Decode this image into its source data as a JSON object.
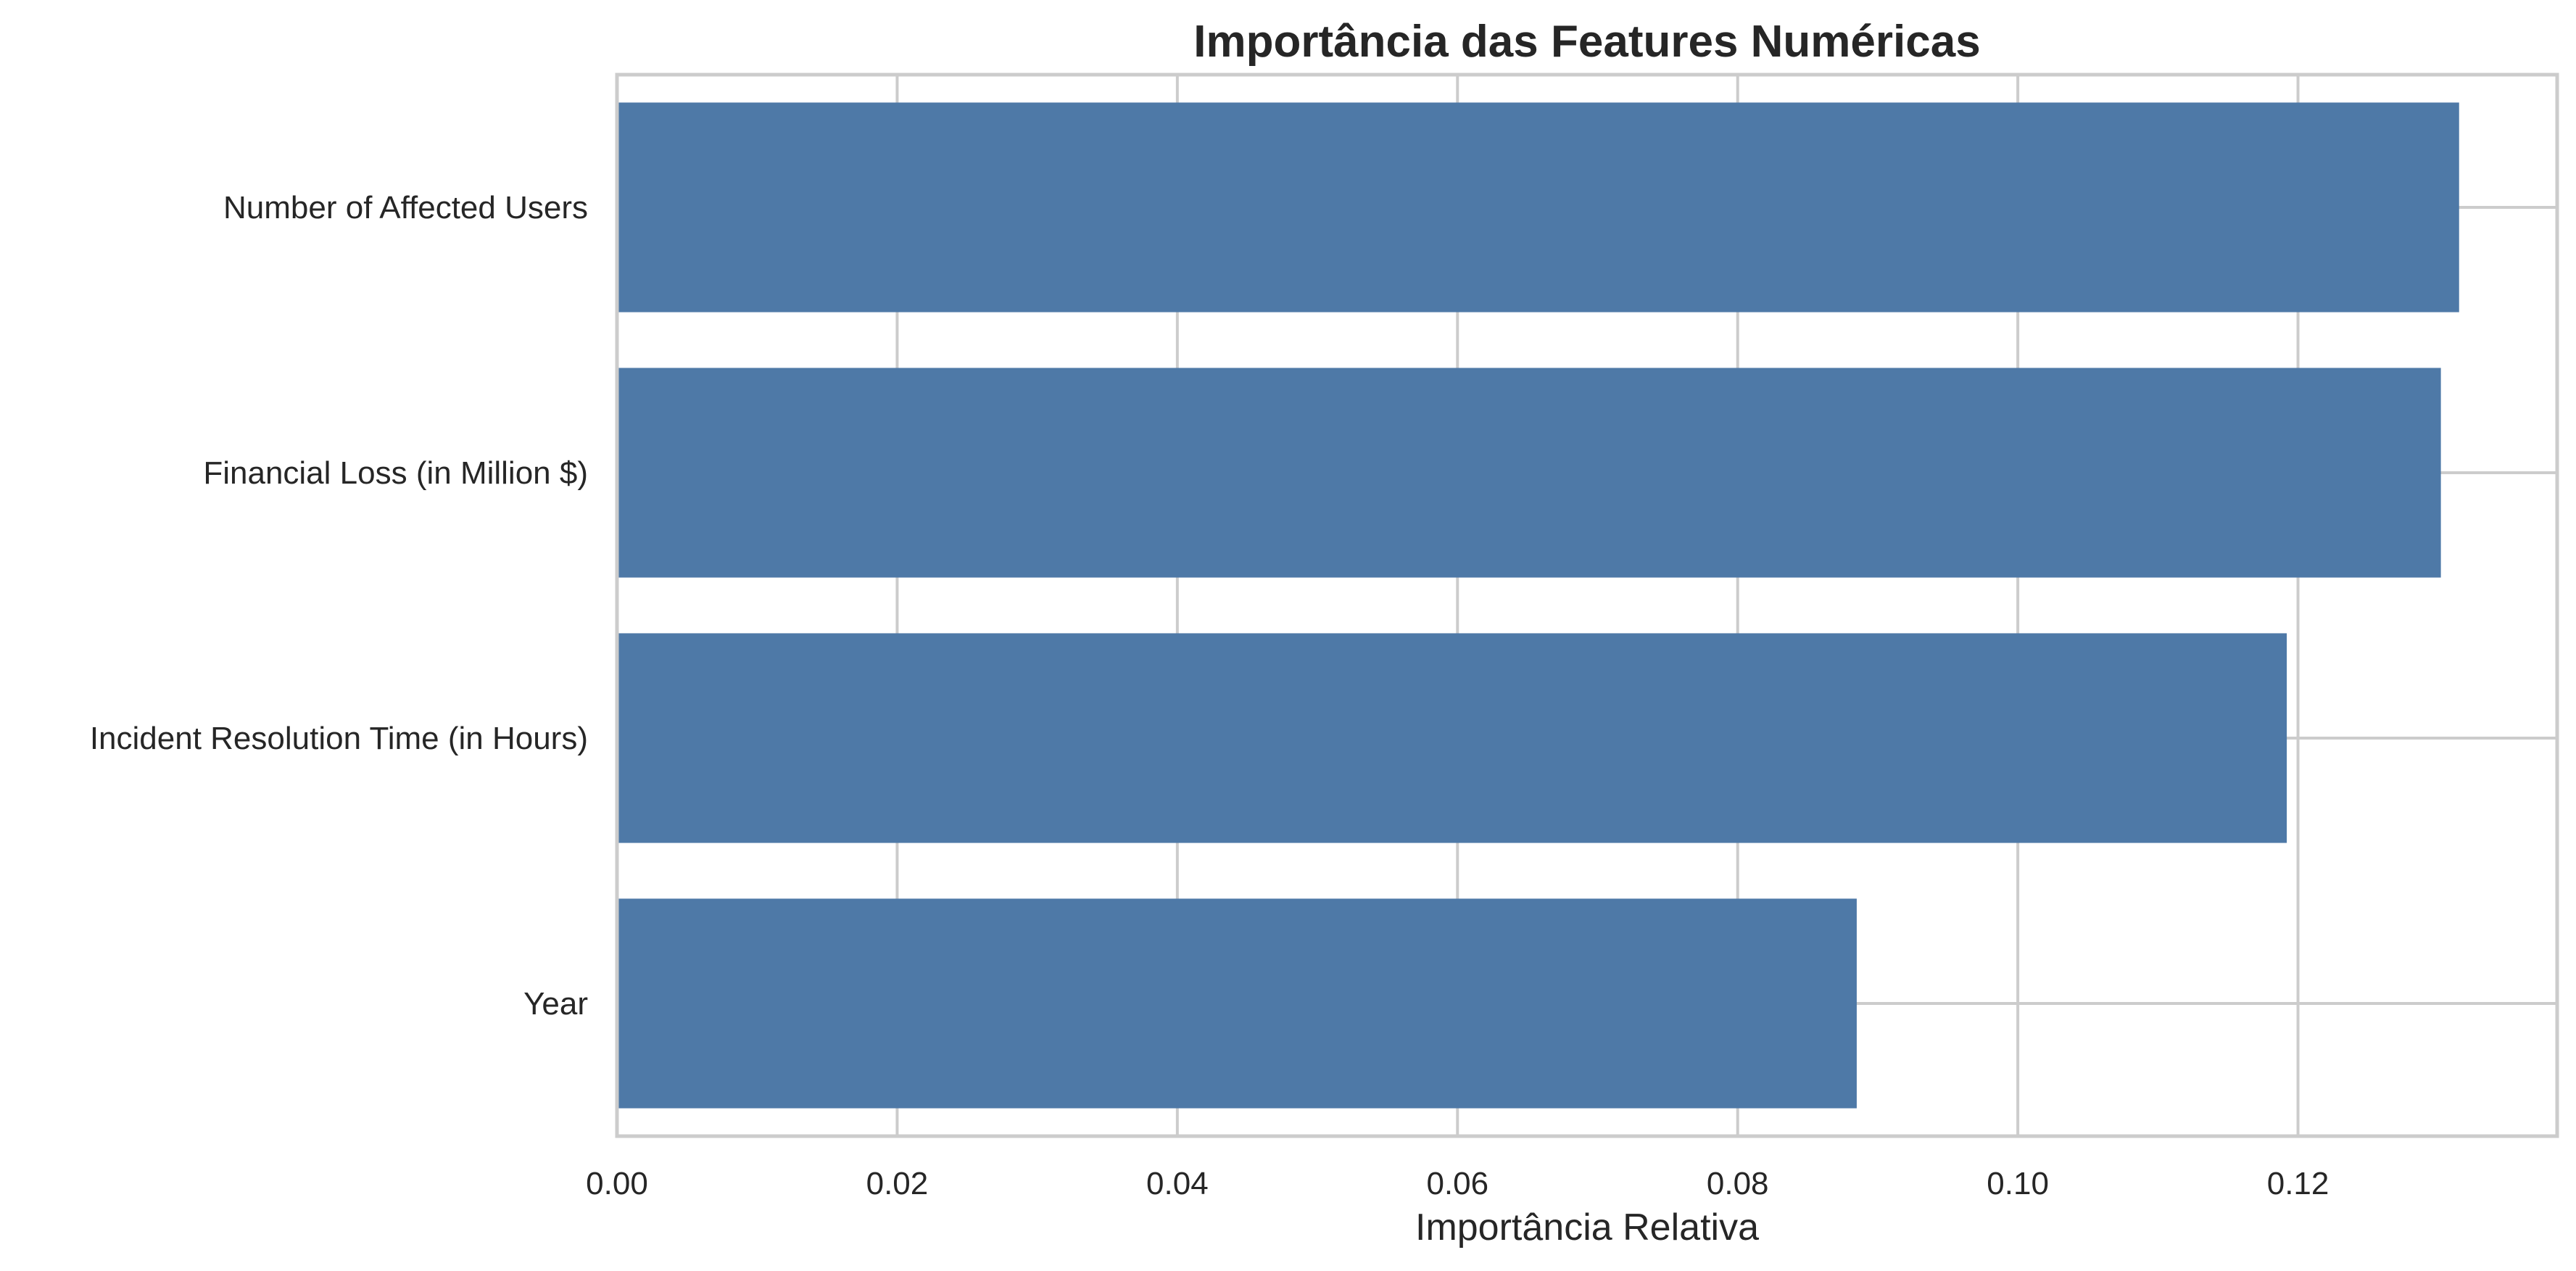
{
  "chart_data": {
    "type": "bar",
    "orientation": "horizontal",
    "title": "Importância das Features Numéricas",
    "xlabel": "Importância Relativa",
    "ylabel": "",
    "categories": [
      "Number of Affected Users",
      "Financial Loss (in Million $)",
      "Incident Resolution Time (in Hours)",
      "Year"
    ],
    "values": [
      0.1315,
      0.1302,
      0.1192,
      0.0885
    ],
    "xlim": [
      0,
      0.1385
    ],
    "xticks": [
      0.0,
      0.02,
      0.04,
      0.06,
      0.08,
      0.1,
      0.12
    ],
    "xtick_labels": [
      "0.00",
      "0.02",
      "0.04",
      "0.06",
      "0.08",
      "0.10",
      "0.12"
    ],
    "grid": true,
    "bar_color": "#4e79a7",
    "grid_color": "#cccccc",
    "text_color": "#262626"
  }
}
